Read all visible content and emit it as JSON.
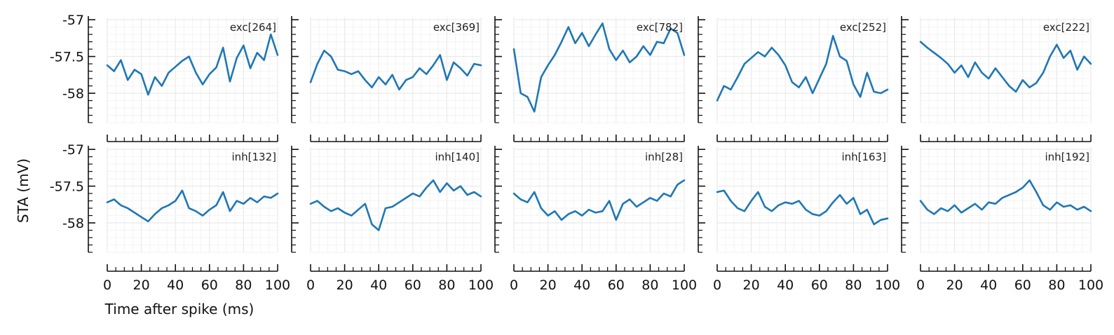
{
  "chart_data": [
    {
      "type": "line",
      "panel_label": "exc[264]",
      "xlim": [
        0,
        100
      ],
      "ylim": [
        -58.4,
        -56.97
      ],
      "x": [
        0,
        4,
        8,
        12,
        16,
        20,
        24,
        28,
        32,
        36,
        40,
        44,
        48,
        52,
        56,
        60,
        64,
        68,
        72,
        76,
        80,
        84,
        88,
        92,
        96,
        100
      ],
      "y": [
        -57.62,
        -57.7,
        -57.55,
        -57.82,
        -57.68,
        -57.74,
        -58.02,
        -57.78,
        -57.9,
        -57.72,
        -57.64,
        -57.56,
        -57.5,
        -57.72,
        -57.88,
        -57.74,
        -57.65,
        -57.38,
        -57.84,
        -57.52,
        -57.35,
        -57.66,
        -57.45,
        -57.55,
        -57.2,
        -57.48
      ]
    },
    {
      "type": "line",
      "panel_label": "exc[369]",
      "xlim": [
        0,
        100
      ],
      "ylim": [
        -58.4,
        -56.97
      ],
      "x": [
        0,
        4,
        8,
        12,
        16,
        20,
        24,
        28,
        32,
        36,
        40,
        44,
        48,
        52,
        56,
        60,
        64,
        68,
        72,
        76,
        80,
        84,
        88,
        92,
        96,
        100
      ],
      "y": [
        -57.85,
        -57.6,
        -57.42,
        -57.5,
        -57.68,
        -57.7,
        -57.74,
        -57.7,
        -57.82,
        -57.92,
        -57.78,
        -57.88,
        -57.75,
        -57.95,
        -57.82,
        -57.78,
        -57.66,
        -57.74,
        -57.62,
        -57.48,
        -57.82,
        -57.58,
        -57.66,
        -57.76,
        -57.6,
        -57.62
      ]
    },
    {
      "type": "line",
      "panel_label": "exc[782]",
      "xlim": [
        0,
        100
      ],
      "ylim": [
        -58.4,
        -56.97
      ],
      "x": [
        0,
        4,
        8,
        12,
        16,
        20,
        24,
        28,
        32,
        36,
        40,
        44,
        48,
        52,
        56,
        60,
        64,
        68,
        72,
        76,
        80,
        84,
        88,
        92,
        96,
        100
      ],
      "y": [
        -57.4,
        -58.0,
        -58.05,
        -58.25,
        -57.78,
        -57.62,
        -57.48,
        -57.3,
        -57.1,
        -57.32,
        -57.18,
        -57.36,
        -57.2,
        -57.05,
        -57.4,
        -57.55,
        -57.42,
        -57.58,
        -57.5,
        -57.36,
        -57.48,
        -57.3,
        -57.32,
        -57.12,
        -57.18,
        -57.48
      ]
    },
    {
      "type": "line",
      "panel_label": "exc[252]",
      "xlim": [
        0,
        100
      ],
      "ylim": [
        -58.4,
        -56.97
      ],
      "x": [
        0,
        4,
        8,
        12,
        16,
        20,
        24,
        28,
        32,
        36,
        40,
        44,
        48,
        52,
        56,
        60,
        64,
        68,
        72,
        76,
        80,
        84,
        88,
        92,
        96,
        100
      ],
      "y": [
        -58.1,
        -57.9,
        -57.95,
        -57.78,
        -57.6,
        -57.52,
        -57.44,
        -57.5,
        -57.38,
        -57.48,
        -57.62,
        -57.85,
        -57.92,
        -57.78,
        -58.0,
        -57.8,
        -57.6,
        -57.22,
        -57.5,
        -57.56,
        -57.88,
        -58.05,
        -57.72,
        -57.98,
        -58.0,
        -57.95
      ]
    },
    {
      "type": "line",
      "panel_label": "exc[222]",
      "xlim": [
        0,
        100
      ],
      "ylim": [
        -58.4,
        -56.97
      ],
      "x": [
        0,
        4,
        8,
        12,
        16,
        20,
        24,
        28,
        32,
        36,
        40,
        44,
        48,
        52,
        56,
        60,
        64,
        68,
        72,
        76,
        80,
        84,
        88,
        92,
        96,
        100
      ],
      "y": [
        -57.3,
        -57.38,
        -57.45,
        -57.52,
        -57.6,
        -57.72,
        -57.62,
        -57.78,
        -57.58,
        -57.72,
        -57.8,
        -57.66,
        -57.78,
        -57.9,
        -57.98,
        -57.82,
        -57.92,
        -57.86,
        -57.72,
        -57.5,
        -57.34,
        -57.52,
        -57.42,
        -57.68,
        -57.5,
        -57.6
      ]
    },
    {
      "type": "line",
      "panel_label": "inh[132]",
      "xlim": [
        0,
        100
      ],
      "ylim": [
        -58.4,
        -56.97
      ],
      "x": [
        0,
        4,
        8,
        12,
        16,
        20,
        24,
        28,
        32,
        36,
        40,
        44,
        48,
        52,
        56,
        60,
        64,
        68,
        72,
        76,
        80,
        84,
        88,
        92,
        96,
        100
      ],
      "y": [
        -57.72,
        -57.68,
        -57.76,
        -57.8,
        -57.86,
        -57.92,
        -57.98,
        -57.88,
        -57.8,
        -57.76,
        -57.7,
        -57.56,
        -57.8,
        -57.84,
        -57.9,
        -57.82,
        -57.76,
        -57.58,
        -57.84,
        -57.7,
        -57.74,
        -57.66,
        -57.72,
        -57.64,
        -57.66,
        -57.6
      ]
    },
    {
      "type": "line",
      "panel_label": "inh[140]",
      "xlim": [
        0,
        100
      ],
      "ylim": [
        -58.4,
        -56.97
      ],
      "x": [
        0,
        4,
        8,
        12,
        16,
        20,
        24,
        28,
        32,
        36,
        40,
        44,
        48,
        52,
        56,
        60,
        64,
        68,
        72,
        76,
        80,
        84,
        88,
        92,
        96,
        100
      ],
      "y": [
        -57.74,
        -57.7,
        -57.78,
        -57.84,
        -57.8,
        -57.86,
        -57.9,
        -57.82,
        -57.74,
        -58.02,
        -58.1,
        -57.8,
        -57.78,
        -57.72,
        -57.66,
        -57.6,
        -57.64,
        -57.52,
        -57.42,
        -57.58,
        -57.46,
        -57.56,
        -57.5,
        -57.62,
        -57.58,
        -57.64
      ]
    },
    {
      "type": "line",
      "panel_label": "inh[28]",
      "xlim": [
        0,
        100
      ],
      "ylim": [
        -58.4,
        -56.97
      ],
      "x": [
        0,
        4,
        8,
        12,
        16,
        20,
        24,
        28,
        32,
        36,
        40,
        44,
        48,
        52,
        56,
        60,
        64,
        68,
        72,
        76,
        80,
        84,
        88,
        92,
        96,
        100
      ],
      "y": [
        -57.6,
        -57.68,
        -57.72,
        -57.58,
        -57.8,
        -57.9,
        -57.84,
        -57.96,
        -57.88,
        -57.84,
        -57.9,
        -57.82,
        -57.86,
        -57.84,
        -57.7,
        -57.96,
        -57.74,
        -57.68,
        -57.78,
        -57.72,
        -57.66,
        -57.7,
        -57.6,
        -57.64,
        -57.48,
        -57.42
      ]
    },
    {
      "type": "line",
      "panel_label": "inh[163]",
      "xlim": [
        0,
        100
      ],
      "ylim": [
        -58.4,
        -56.97
      ],
      "x": [
        0,
        4,
        8,
        12,
        16,
        20,
        24,
        28,
        32,
        36,
        40,
        44,
        48,
        52,
        56,
        60,
        64,
        68,
        72,
        76,
        80,
        84,
        88,
        92,
        96,
        100
      ],
      "y": [
        -57.58,
        -57.56,
        -57.7,
        -57.8,
        -57.84,
        -57.7,
        -57.58,
        -57.78,
        -57.84,
        -57.76,
        -57.72,
        -57.74,
        -57.7,
        -57.82,
        -57.88,
        -57.9,
        -57.84,
        -57.72,
        -57.62,
        -57.74,
        -57.66,
        -57.88,
        -57.82,
        -58.02,
        -57.96,
        -57.94
      ]
    },
    {
      "type": "line",
      "panel_label": "inh[192]",
      "xlim": [
        0,
        100
      ],
      "ylim": [
        -58.4,
        -56.97
      ],
      "x": [
        0,
        4,
        8,
        12,
        16,
        20,
        24,
        28,
        32,
        36,
        40,
        44,
        48,
        52,
        56,
        60,
        64,
        68,
        72,
        76,
        80,
        84,
        88,
        92,
        96,
        100
      ],
      "y": [
        -57.7,
        -57.82,
        -57.88,
        -57.8,
        -57.84,
        -57.76,
        -57.86,
        -57.8,
        -57.74,
        -57.82,
        -57.72,
        -57.74,
        -57.66,
        -57.62,
        -57.58,
        -57.52,
        -57.42,
        -57.58,
        -57.76,
        -57.82,
        -57.72,
        -57.78,
        -57.76,
        -57.82,
        -57.78,
        -57.84
      ]
    }
  ],
  "axes": {
    "xlabel": "Time after spike (ms)",
    "ylabel": "STA (mV)",
    "xticks": [
      0,
      20,
      40,
      60,
      80,
      100
    ],
    "xtick_labels": [
      "0",
      "20",
      "40",
      "60",
      "80",
      "100"
    ],
    "yticks": [
      -57,
      -57.5,
      -58
    ],
    "ytick_labels": [
      "-57",
      "-57.5",
      "-58"
    ],
    "grid": true,
    "line_color": "#1f77b4"
  }
}
